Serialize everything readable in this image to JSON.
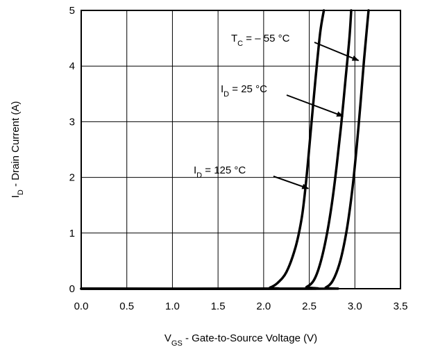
{
  "chart_data": {
    "type": "line",
    "title": "",
    "xlabel": {
      "main": "V",
      "sub": "GS",
      "rest": " - Gate-to-Source Voltage (V)"
    },
    "ylabel": {
      "main": "I",
      "sub": "D",
      "rest": " - Drain Current (A)"
    },
    "xlim": [
      0,
      3.5
    ],
    "ylim": [
      0,
      5
    ],
    "xticks": [
      "0.0",
      "0.5",
      "1.0",
      "1.5",
      "2.0",
      "2.5",
      "3.0",
      "3.5"
    ],
    "yticks": [
      "0",
      "1",
      "2",
      "3",
      "4",
      "5"
    ],
    "grid": true,
    "series": [
      {
        "name": "125 °C",
        "x": [
          0,
          2.0,
          2.07,
          2.15,
          2.25,
          2.35,
          2.42,
          2.47,
          2.52,
          2.57,
          2.62,
          2.66
        ],
        "y": [
          0,
          0,
          0.02,
          0.1,
          0.3,
          0.75,
          1.3,
          2.0,
          2.9,
          3.8,
          4.6,
          5.0
        ]
      },
      {
        "name": "25 °C",
        "x": [
          0,
          2.4,
          2.47,
          2.55,
          2.62,
          2.69,
          2.75,
          2.8,
          2.85,
          2.9,
          2.94,
          2.96
        ],
        "y": [
          0,
          0,
          0.03,
          0.15,
          0.45,
          0.95,
          1.55,
          2.2,
          2.95,
          3.8,
          4.5,
          5.0
        ]
      },
      {
        "name": "– 55 °C",
        "x": [
          0,
          2.6,
          2.68,
          2.76,
          2.84,
          2.91,
          2.97,
          3.02,
          3.06,
          3.1,
          3.13,
          3.15
        ],
        "y": [
          0,
          0,
          0.02,
          0.15,
          0.5,
          1.05,
          1.75,
          2.55,
          3.3,
          4.1,
          4.65,
          5.0
        ]
      }
    ],
    "annotations": [
      {
        "main": "T",
        "sub": "C",
        "rest": " = – 55 °C",
        "target": [
          3.04,
          4.1
        ]
      },
      {
        "main": "I",
        "sub": "D",
        "rest": " = 25 °C",
        "target": [
          2.87,
          3.1
        ]
      },
      {
        "main": "I",
        "sub": "D",
        "rest": " = 125 °C",
        "target": [
          2.49,
          1.8
        ]
      }
    ]
  }
}
